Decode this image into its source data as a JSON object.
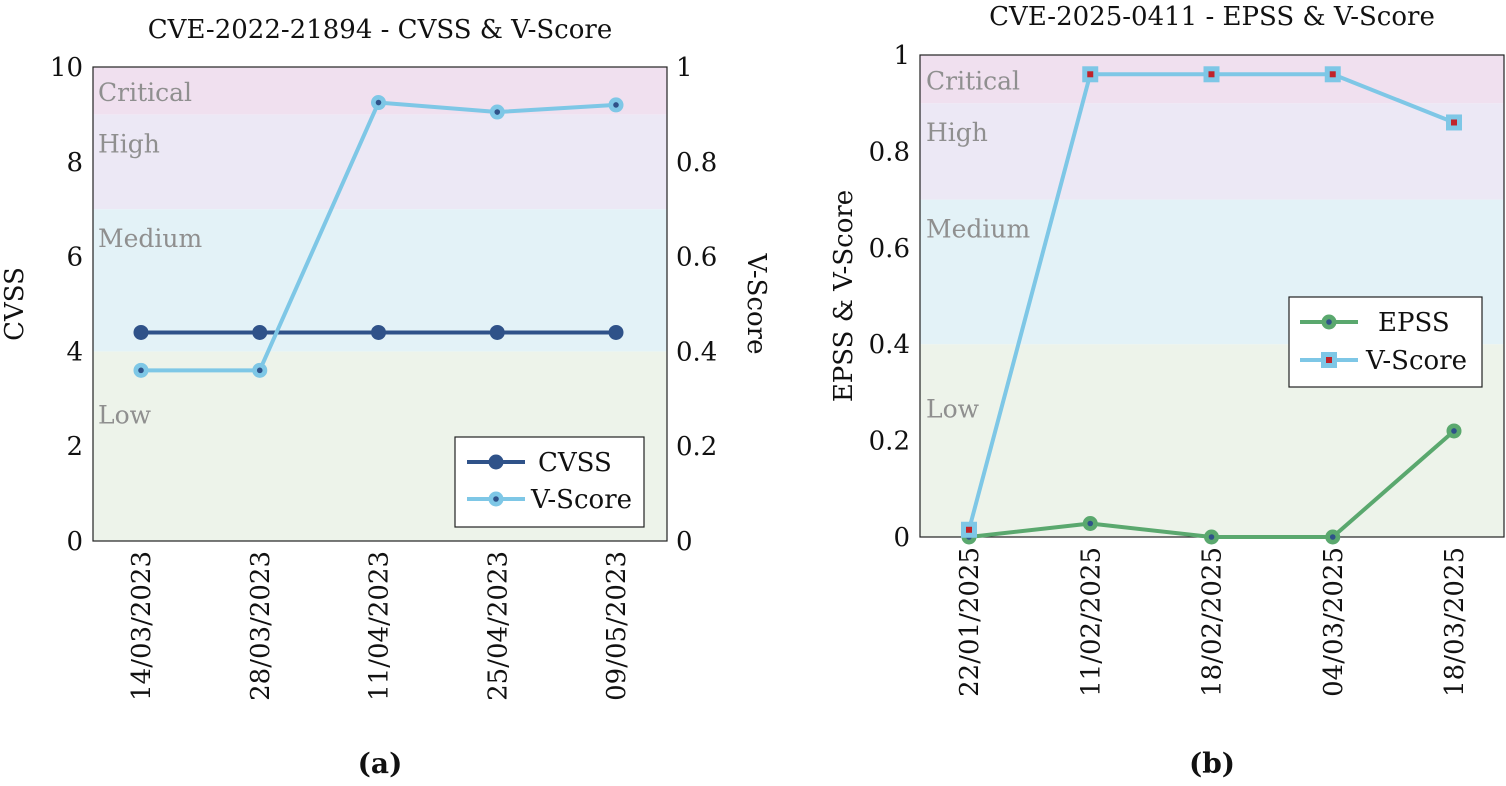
{
  "chart_data": [
    {
      "type": "line",
      "panel": "(a)",
      "title": "CVE-2022-21894 - CVSS & V-Score",
      "categories": [
        "14/03/2023",
        "28/03/2023",
        "11/04/2023",
        "25/04/2023",
        "09/05/2023"
      ],
      "ylabel": "CVSS",
      "ylabel_right": "V-Score",
      "ylim": [
        0,
        10
      ],
      "ylim_right": [
        0,
        1
      ],
      "yticks": [
        "0",
        "2",
        "4",
        "6",
        "8",
        "10"
      ],
      "yticks_right": [
        "0",
        "0.2",
        "0.4",
        "0.6",
        "0.8",
        "1"
      ],
      "bands": [
        {
          "label": "Low",
          "from": 0,
          "to": 4,
          "color": "#edf3ea"
        },
        {
          "label": "Medium",
          "from": 4,
          "to": 7,
          "color": "#e3f2f7"
        },
        {
          "label": "High",
          "from": 7,
          "to": 9,
          "color": "#ece8f5"
        },
        {
          "label": "Critical",
          "from": 9,
          "to": 10,
          "color": "#f0e0ef"
        }
      ],
      "series": [
        {
          "name": "CVSS",
          "axis": "left",
          "values": [
            4.4,
            4.4,
            4.4,
            4.4,
            4.4
          ],
          "color": "#2f5289",
          "marker": "circle"
        },
        {
          "name": "V-Score",
          "axis": "right",
          "values": [
            0.36,
            0.36,
            0.925,
            0.905,
            0.92
          ],
          "color": "#7ec7e6",
          "marker": "circle"
        }
      ],
      "legend": {
        "position": "bottom-right",
        "entries": [
          "CVSS",
          "V-Score"
        ]
      },
      "caption": "(a)"
    },
    {
      "type": "line",
      "panel": "(b)",
      "title": "CVE-2025-0411 - EPSS & V-Score",
      "categories": [
        "22/01/2025",
        "11/02/2025",
        "18/02/2025",
        "04/03/2025",
        "18/03/2025"
      ],
      "ylabel": "EPSS & V-Score",
      "ylim": [
        0,
        1
      ],
      "yticks": [
        "0",
        "0.2",
        "0.4",
        "0.6",
        "0.8",
        "1"
      ],
      "bands": [
        {
          "label": "Low",
          "from": 0,
          "to": 0.4,
          "color": "#edf3ea"
        },
        {
          "label": "Medium",
          "from": 0.4,
          "to": 0.7,
          "color": "#e3f2f7"
        },
        {
          "label": "High",
          "from": 0.7,
          "to": 0.9,
          "color": "#ece8f5"
        },
        {
          "label": "Critical",
          "from": 0.9,
          "to": 1.0,
          "color": "#f0e0ef"
        }
      ],
      "series": [
        {
          "name": "EPSS",
          "axis": "left",
          "values": [
            0.0,
            0.028,
            0.0,
            0.0,
            0.22
          ],
          "color": "#5aa86e",
          "marker": "circle"
        },
        {
          "name": "V-Score",
          "axis": "left",
          "values": [
            0.015,
            0.96,
            0.96,
            0.96,
            0.86
          ],
          "color": "#7ec7e6",
          "marker": "square"
        }
      ],
      "legend": {
        "position": "center-right",
        "entries": [
          "EPSS",
          "V-Score"
        ]
      },
      "caption": "(b)"
    }
  ]
}
